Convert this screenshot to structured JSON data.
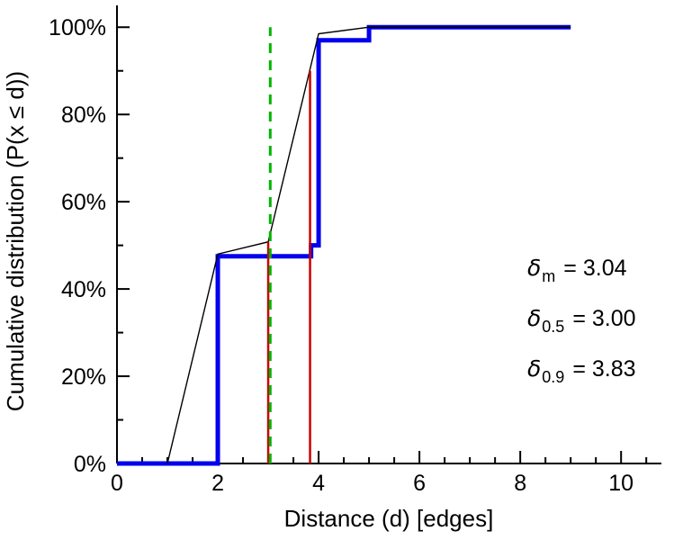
{
  "chart_data": {
    "type": "line",
    "title": "",
    "xlabel": "Distance (d) [edges]",
    "ylabel": "Cumulative distribution (P(x ≤ d))",
    "xlim": [
      0,
      10.8
    ],
    "ylim": [
      0,
      1.05
    ],
    "grid": false,
    "legend": "none",
    "x_major_ticks": [
      0,
      2,
      4,
      6,
      8,
      10
    ],
    "x_tick_labels": [
      "0",
      "2",
      "4",
      "6",
      "8",
      "10"
    ],
    "x_minor_step": 0.5,
    "x_minor_max": 10.5,
    "y_major_ticks": [
      0,
      0.2,
      0.4,
      0.6,
      0.8,
      1.0
    ],
    "y_tick_labels": [
      "0%",
      "20%",
      "40%",
      "60%",
      "80%",
      "100%"
    ],
    "y_minor_step": 0.1,
    "colors": {
      "empirical_cdf": "#0000ee",
      "interpolated_cdf": "#000000",
      "percentile_lines": "#cc0000",
      "mean_line": "#00b400",
      "axis": "#000000"
    },
    "series": [
      {
        "name": "empirical-cdf-step",
        "color": "#0000ee",
        "width": 5,
        "dash": "none",
        "points": [
          [
            0,
            0
          ],
          [
            2,
            0
          ],
          [
            2,
            0.475
          ],
          [
            3.85,
            0.475
          ],
          [
            3.85,
            0.5
          ],
          [
            4,
            0.5
          ],
          [
            4,
            0.97
          ],
          [
            5,
            0.97
          ],
          [
            5,
            1.0
          ],
          [
            9,
            1.0
          ]
        ]
      },
      {
        "name": "interpolated-cdf",
        "color": "#000000",
        "width": 1.4,
        "dash": "none",
        "points": [
          [
            1,
            0
          ],
          [
            2,
            0.48
          ],
          [
            3,
            0.508
          ],
          [
            4,
            0.985
          ],
          [
            5,
            1.0
          ],
          [
            9,
            1.0
          ]
        ]
      }
    ],
    "vlines": [
      {
        "name": "median-distance-line",
        "x": 3.0,
        "y0": 0,
        "y1": 0.508,
        "color": "#cc0000",
        "width": 2.5,
        "dash": "none"
      },
      {
        "name": "p90-distance-line",
        "x": 3.83,
        "y0": 0,
        "y1": 0.9,
        "color": "#cc0000",
        "width": 2.5,
        "dash": "none"
      },
      {
        "name": "mean-distance-line",
        "x": 3.04,
        "y0": 0,
        "y1": 1.0,
        "color": "#00b400",
        "width": 3,
        "dash": "11,8"
      }
    ],
    "annotations": [
      {
        "symbol": "δ",
        "subscript": "m",
        "value": "= 3.04"
      },
      {
        "symbol": "δ",
        "subscript": "0.5",
        "value": "= 3.00"
      },
      {
        "symbol": "δ",
        "subscript": "0.9",
        "value": "= 3.83"
      }
    ]
  }
}
